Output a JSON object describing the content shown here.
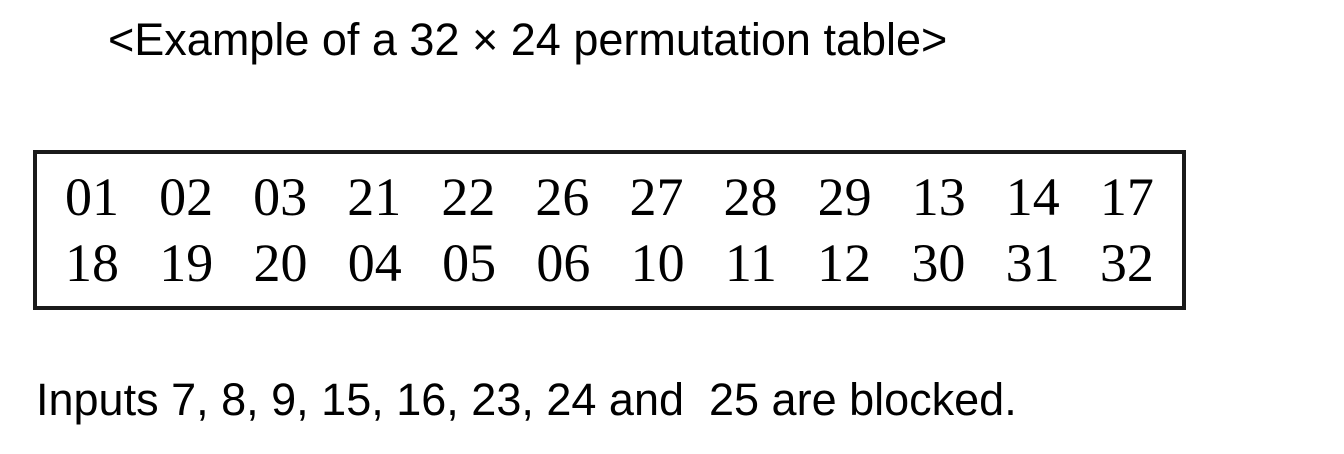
{
  "figure": {
    "title": "<Example of a 32 × 24 permutation table>",
    "note": "Inputs 7, 8, 9, 15, 16, 23, 24 and  25 are blocked."
  },
  "table": {
    "rows": [
      [
        "01",
        "02",
        "03",
        "21",
        "22",
        "26",
        "27",
        "28",
        "29",
        "13",
        "14",
        "17"
      ],
      [
        "18",
        "19",
        "20",
        "04",
        "05",
        "06",
        "10",
        "11",
        "12",
        "30",
        "31",
        "32"
      ]
    ]
  },
  "blocked_inputs": [
    7,
    8,
    9,
    15,
    16,
    23,
    24,
    25
  ],
  "colors": {
    "text": "#000000",
    "background": "#ffffff",
    "border": "#1a1a1a"
  }
}
